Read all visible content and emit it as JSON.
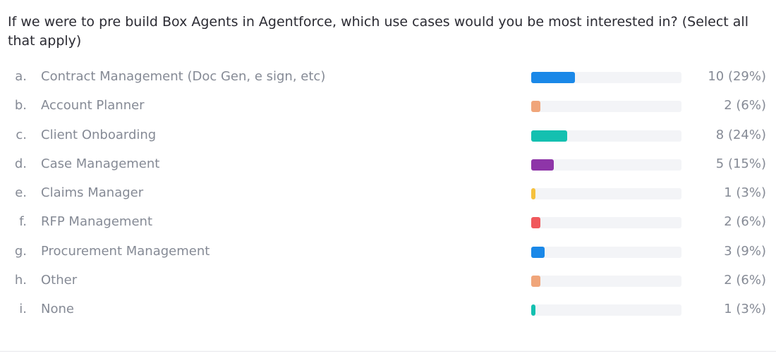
{
  "question": "If we were to pre build Box Agents in Agentforce, which use cases would you be most interested in? (Select all that apply)",
  "chart_data": {
    "type": "bar",
    "orientation": "horizontal",
    "categories": [
      "Contract Management (Doc Gen, e sign, etc)",
      "Account Planner",
      "Client Onboarding",
      "Case Management",
      "Claims Manager",
      "RFP Management",
      "Procurement Management",
      "Other",
      "None"
    ],
    "letters": [
      "a.",
      "b.",
      "c.",
      "d.",
      "e.",
      "f.",
      "g.",
      "h.",
      "i."
    ],
    "values": [
      10,
      2,
      8,
      5,
      1,
      2,
      3,
      2,
      1
    ],
    "percents": [
      29,
      6,
      24,
      15,
      3,
      6,
      9,
      6,
      3
    ],
    "value_labels": [
      "10 (29%)",
      "2 (6%)",
      "8 (24%)",
      "5 (15%)",
      "1 (3%)",
      "2 (6%)",
      "3 (9%)",
      "2 (6%)",
      "1 (3%)"
    ],
    "colors": [
      "#1a88e8",
      "#f0a57a",
      "#14c0b0",
      "#8e35a8",
      "#f5c13e",
      "#f0585c",
      "#1a88e8",
      "#f0a57a",
      "#14c0b0"
    ],
    "xlim": [
      0,
      100
    ],
    "track_color": "#f3f4f7"
  }
}
